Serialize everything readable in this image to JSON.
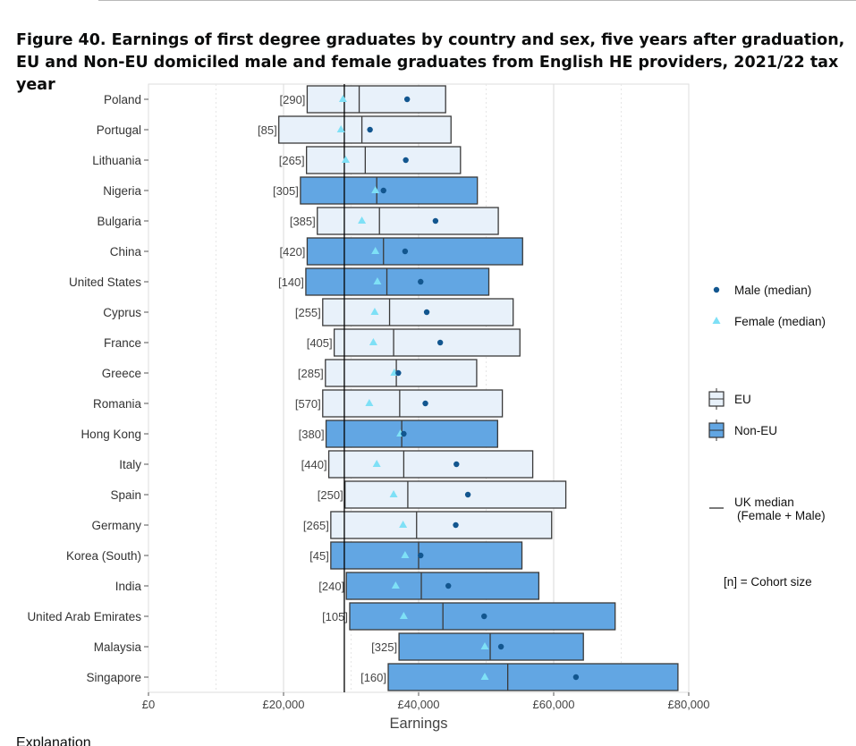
{
  "title": "Figure 40. Earnings of first degree graduates by country and sex, five years after graduation, EU and Non-EU domiciled male and female graduates from English HE providers, 2021/22 tax year",
  "chart_data": {
    "type": "boxplot",
    "xlabel": "Earnings",
    "ylabel": "",
    "xlim": [
      0,
      80000
    ],
    "x_ticks": [
      0,
      20000,
      40000,
      60000,
      80000
    ],
    "x_tick_labels": [
      "£0",
      "£20,000",
      "£40,000",
      "£60,000",
      "£80,000"
    ],
    "uk_median": 29000,
    "grid": true,
    "legend_position": "right",
    "colors": {
      "eu_fill": "#e8f1fa",
      "non_eu_fill": "#62a6e3",
      "box_stroke": "#3a3a3a",
      "male": "#12568f",
      "female": "#7ee0f6",
      "uk_median_line": "#000000"
    },
    "legend": {
      "male": "Male (median)",
      "female": "Female (median)",
      "eu": "EU",
      "non_eu": "Non-EU",
      "uk_median_line1": "UK median",
      "uk_median_line2": "(Female + Male)",
      "cohort_note": "[n] = Cohort size"
    },
    "rows": [
      {
        "country": "Poland",
        "cohort": "[290]",
        "group": "EU",
        "q1": 23500,
        "median": 31200,
        "q3": 44000,
        "male": 38300,
        "female": 28800
      },
      {
        "country": "Portugal",
        "cohort": "[85]",
        "group": "EU",
        "q1": 19300,
        "median": 31600,
        "q3": 44800,
        "male": 32800,
        "female": 28500
      },
      {
        "country": "Lithuania",
        "cohort": "[265]",
        "group": "EU",
        "q1": 23400,
        "median": 32100,
        "q3": 46200,
        "male": 38100,
        "female": 29200
      },
      {
        "country": "Nigeria",
        "cohort": "[305]",
        "group": "Non-EU",
        "q1": 22500,
        "median": 33800,
        "q3": 48700,
        "male": 34800,
        "female": 33600
      },
      {
        "country": "Bulgaria",
        "cohort": "[385]",
        "group": "EU",
        "q1": 25000,
        "median": 34200,
        "q3": 51800,
        "male": 42500,
        "female": 31600
      },
      {
        "country": "China",
        "cohort": "[420]",
        "group": "Non-EU",
        "q1": 23500,
        "median": 34800,
        "q3": 55400,
        "male": 38000,
        "female": 33600
      },
      {
        "country": "United States",
        "cohort": "[140]",
        "group": "Non-EU",
        "q1": 23300,
        "median": 35300,
        "q3": 50400,
        "male": 40300,
        "female": 33900
      },
      {
        "country": "Cyprus",
        "cohort": "[255]",
        "group": "EU",
        "q1": 25800,
        "median": 35700,
        "q3": 54000,
        "male": 41200,
        "female": 33500
      },
      {
        "country": "France",
        "cohort": "[405]",
        "group": "EU",
        "q1": 27500,
        "median": 36300,
        "q3": 55000,
        "male": 43200,
        "female": 33300
      },
      {
        "country": "Greece",
        "cohort": "[285]",
        "group": "EU",
        "q1": 26200,
        "median": 36700,
        "q3": 48600,
        "male": 37000,
        "female": 36400
      },
      {
        "country": "Romania",
        "cohort": "[570]",
        "group": "EU",
        "q1": 25800,
        "median": 37200,
        "q3": 52400,
        "male": 41000,
        "female": 32700
      },
      {
        "country": "Hong Kong",
        "cohort": "[380]",
        "group": "Non-EU",
        "q1": 26300,
        "median": 37500,
        "q3": 51700,
        "male": 37800,
        "female": 37300
      },
      {
        "country": "Italy",
        "cohort": "[440]",
        "group": "EU",
        "q1": 26700,
        "median": 37800,
        "q3": 56900,
        "male": 45600,
        "female": 33800
      },
      {
        "country": "Spain",
        "cohort": "[250]",
        "group": "EU",
        "q1": 29100,
        "median": 38400,
        "q3": 61800,
        "male": 47300,
        "female": 36300
      },
      {
        "country": "Germany",
        "cohort": "[265]",
        "group": "EU",
        "q1": 27000,
        "median": 39700,
        "q3": 59700,
        "male": 45500,
        "female": 37700
      },
      {
        "country": "Korea (South)",
        "cohort": "[45]",
        "group": "Non-EU",
        "q1": 27000,
        "median": 40000,
        "q3": 55300,
        "male": 40300,
        "female": 38000
      },
      {
        "country": "India",
        "cohort": "[240]",
        "group": "Non-EU",
        "q1": 29300,
        "median": 40400,
        "q3": 57800,
        "male": 44400,
        "female": 36600
      },
      {
        "country": "United Arab Emirates",
        "cohort": "[105]",
        "group": "Non-EU",
        "q1": 29800,
        "median": 43600,
        "q3": 69100,
        "male": 49700,
        "female": 37800
      },
      {
        "country": "Malaysia",
        "cohort": "[325]",
        "group": "Non-EU",
        "q1": 37100,
        "median": 50600,
        "q3": 64400,
        "male": 52200,
        "female": 49800
      },
      {
        "country": "Singapore",
        "cohort": "[160]",
        "group": "Non-EU",
        "q1": 35500,
        "median": 53200,
        "q3": 78400,
        "male": 63300,
        "female": 49800
      }
    ]
  },
  "footer_text": "Explanation"
}
